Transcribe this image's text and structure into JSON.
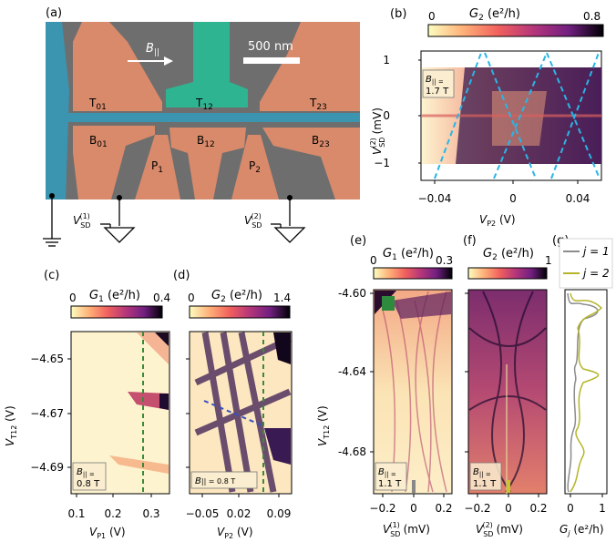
{
  "panels": {
    "a": {
      "letter": "(a)",
      "b_field": "B",
      "b_sub": "||",
      "scale_bar": "500 nm",
      "gates": {
        "T01": [
          "T",
          "01"
        ],
        "T12": [
          "T",
          "12"
        ],
        "T23": [
          "T",
          "23"
        ],
        "B01": [
          "B",
          "01"
        ],
        "B12": [
          "B",
          "12"
        ],
        "B23": [
          "B",
          "23"
        ],
        "P1": [
          "P",
          "1"
        ],
        "P2": [
          "P",
          "2"
        ]
      },
      "vsd1": [
        "V",
        "SD",
        "(1)"
      ],
      "vsd2": [
        "V",
        "SD",
        "(2)"
      ]
    },
    "b": {
      "letter": "(b)",
      "cbar_label": "G",
      "cbar_sub": "2",
      "cbar_unit": " (e²/h)",
      "cbar_min": "0",
      "cbar_max": "0.8",
      "y_label": "V",
      "y_sup": "(2)",
      "y_sub": "SD",
      "y_unit": " (mV)",
      "x_label": "V",
      "x_sub": "P2",
      "x_unit": " (V)",
      "x_ticks": [
        "−0.04",
        "0",
        "0.04"
      ],
      "y_ticks": [
        "1",
        "0",
        "−1"
      ],
      "annot": [
        "B",
        "|| =",
        "1.7 T"
      ]
    },
    "c": {
      "letter": "(c)",
      "cbar_label": "G",
      "cbar_sub": "1",
      "cbar_unit": " (e²/h)",
      "cbar_min": "0",
      "cbar_max": "0.4",
      "y_label": "V",
      "y_sub": "T12",
      "y_unit": " (V)",
      "x_label": "V",
      "x_sub": "P1",
      "x_unit": " (V)",
      "x_ticks": [
        "0.1",
        "0.2",
        "0.3"
      ],
      "y_ticks": [
        "−4.65",
        "−4.67",
        "−4.69"
      ],
      "annot": [
        "B",
        "|| =",
        "0.8 T"
      ]
    },
    "d": {
      "letter": "(d)",
      "cbar_label": "G",
      "cbar_sub": "2",
      "cbar_unit": " (e²/h)",
      "cbar_min": "0",
      "cbar_max": "1.4",
      "x_label": "V",
      "x_sub": "P2",
      "x_unit": " (V)",
      "x_ticks": [
        "−0.05",
        "0.02",
        "0.09"
      ],
      "annot": [
        "B",
        "|| = 0.8 T"
      ]
    },
    "e": {
      "letter": "(e)",
      "cbar_label": "G",
      "cbar_sub": "1",
      "cbar_unit": " (e²/h)",
      "cbar_min": "0",
      "cbar_max": "0.3",
      "y_label": "V",
      "y_sub": "T12",
      "y_unit": " (V)",
      "x_label": "V",
      "x_sup": "(1)",
      "x_sub": "SD",
      "x_unit": " (mV)",
      "x_ticks": [
        "−0.2",
        "0",
        "0.2"
      ],
      "y_ticks": [
        "-4.60",
        "-4.64",
        "-4.68"
      ],
      "annot": [
        "B",
        "|| =",
        "1.1 T"
      ]
    },
    "f": {
      "letter": "(f)",
      "cbar_label": "G",
      "cbar_sub": "2",
      "cbar_unit": " (e²/h)",
      "cbar_min": "0",
      "cbar_max": "1",
      "x_label": "V",
      "x_sup": "(2)",
      "x_sub": "SD",
      "x_unit": " (mV)",
      "x_ticks": [
        "−0.2",
        "0",
        "0.2"
      ],
      "annot": [
        "B",
        "|| =",
        "1.1 T"
      ]
    },
    "g": {
      "letter": "(g)",
      "x_label": "G",
      "x_sub": "j",
      "x_unit": " (e²/h)",
      "x_ticks": [
        "0",
        "1"
      ],
      "legend": [
        {
          "label": "j = 1",
          "color": "#8c8c8c"
        },
        {
          "label": "j = 2",
          "color": "#b5b52a"
        }
      ]
    }
  },
  "colors": {
    "gate": "#d98a6b",
    "t12": "#2fb491",
    "lead": "#3b95b0",
    "substrate": "#6c6c6c",
    "guide_green": "#3a8a3a",
    "guide_blue": "#29b6e6",
    "guide_darkblue": "#3a4fbf"
  }
}
